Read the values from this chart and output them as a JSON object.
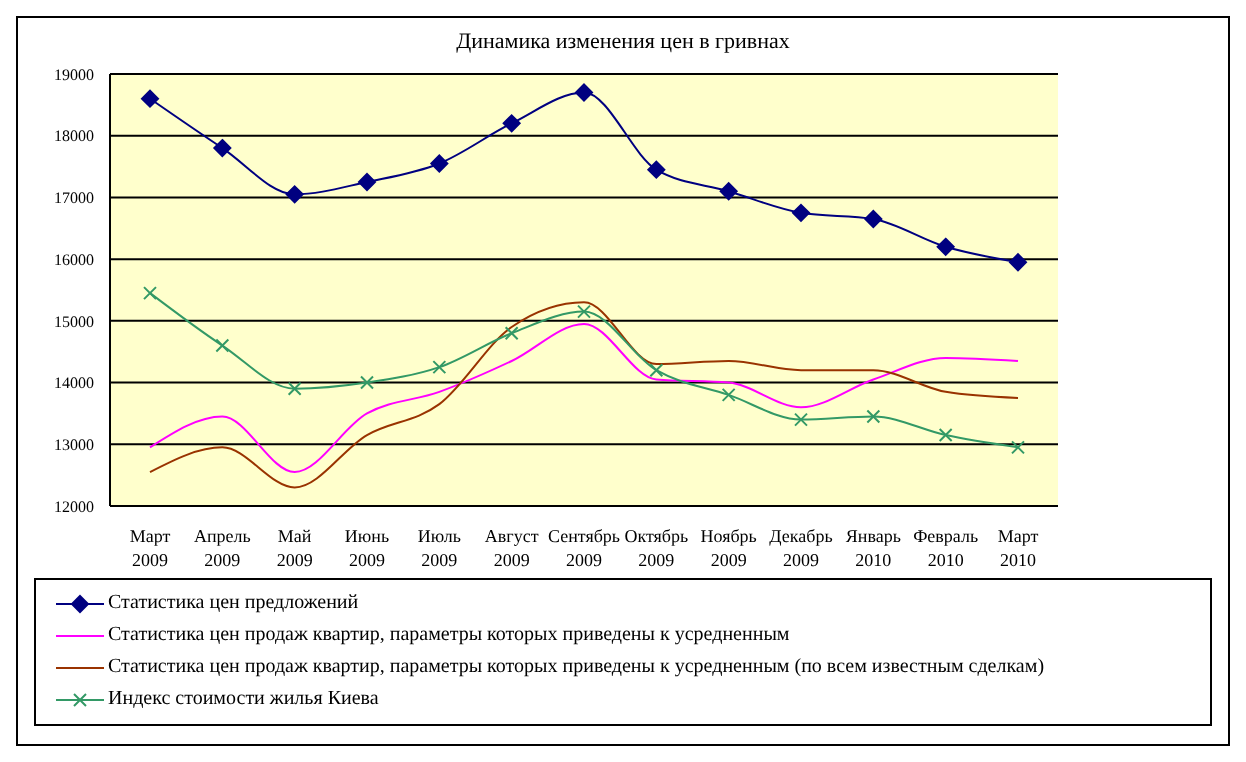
{
  "chart_data": {
    "type": "line",
    "title": "Динамика изменения цен в гривнах",
    "categories": [
      "Март 2009",
      "Апрель 2009",
      "Май 2009",
      "Июнь 2009",
      "Июль 2009",
      "Август 2009",
      "Сентябрь 2009",
      "Октябрь 2009",
      "Ноябрь 2009",
      "Декабрь 2009",
      "Январь 2010",
      "Февраль 2010",
      "Март 2010"
    ],
    "series": [
      {
        "name": "Статистика цен предложений",
        "color": "#000080",
        "marker": "diamond",
        "values": [
          18600,
          17800,
          17050,
          17250,
          17550,
          18200,
          18700,
          17450,
          17100,
          16750,
          16650,
          16200,
          15950
        ]
      },
      {
        "name": "Статистика цен продаж квартир, параметры которых приведены к усредненным",
        "color": "#ff00ff",
        "marker": "none",
        "values": [
          12950,
          13450,
          12550,
          13500,
          13850,
          14350,
          14950,
          14050,
          14000,
          13600,
          14050,
          14400,
          14350
        ]
      },
      {
        "name": "Статистика цен продаж квартир, параметры которых приведены к усредненным (по всем известным сделкам)",
        "color": "#993300",
        "marker": "none",
        "values": [
          12550,
          12950,
          12300,
          13150,
          13650,
          14900,
          15300,
          14300,
          14350,
          14200,
          14200,
          13850,
          13750
        ]
      },
      {
        "name": "Индекс стоимости жилья Киева",
        "color": "#339966",
        "marker": "cross",
        "values": [
          15450,
          14600,
          13900,
          14000,
          14250,
          14800,
          15150,
          14200,
          13800,
          13400,
          13450,
          13150,
          12950
        ]
      }
    ],
    "ylim": [
      12000,
      19000
    ],
    "yticks": [
      12000,
      13000,
      14000,
      15000,
      16000,
      17000,
      18000,
      19000
    ],
    "grid": "y",
    "legend": "bottom",
    "line_style": "solid"
  }
}
